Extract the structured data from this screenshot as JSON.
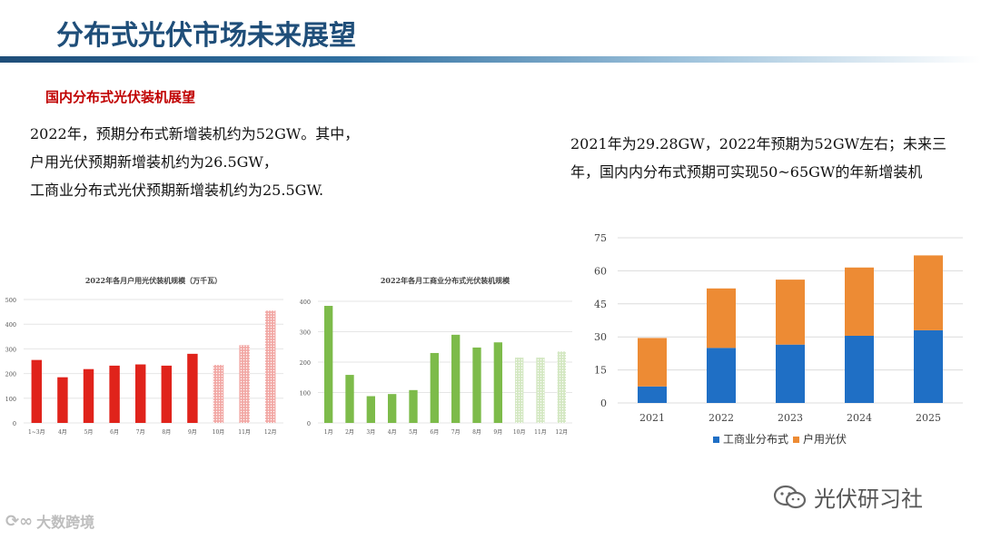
{
  "title": "分布式光伏市场未来展望",
  "subtitle": "国内分布式光伏装机展望",
  "para_left": [
    "2022年，预期分布式新增装机约为52GW。其中，",
    "户用光伏预期新增装机约为26.5GW，",
    "工商业分布式光伏预期新增装机约为25.5GW."
  ],
  "para_right": [
    "2021年为29.28GW，2022年预期为52GW左右；未来三",
    "年，国内内分布式预期可实现50~65GW的年新增装机"
  ],
  "watermark_left": "大数跨境",
  "watermark_right": "光伏研习社",
  "colors": {
    "title": "#1f4e79",
    "subtitle": "#c00000",
    "red": "#e0231b",
    "green": "#7dbb4a",
    "blue": "#1f6fc5",
    "orange": "#ed8b34"
  },
  "chart_data": [
    {
      "type": "bar",
      "title": "2022年各月户用光伏装机规模（万千瓦）",
      "categories": [
        "1~3月",
        "4月",
        "5月",
        "6月",
        "7月",
        "8月",
        "9月",
        "10月",
        "11月",
        "12月"
      ],
      "values": [
        255,
        185,
        218,
        232,
        237,
        232,
        280,
        235,
        315,
        455
      ],
      "forecast_from_index": 7,
      "yticks": [
        0,
        100,
        200,
        300,
        400,
        500
      ],
      "ylim": [
        0,
        500
      ]
    },
    {
      "type": "bar",
      "title": "2022年各月工商业分布式光伏装机规模",
      "categories": [
        "1月",
        "2月",
        "3月",
        "4月",
        "5月",
        "6月",
        "7月",
        "8月",
        "9月",
        "10月",
        "11月",
        "12月"
      ],
      "values": [
        385,
        158,
        88,
        95,
        108,
        230,
        290,
        248,
        265,
        215,
        215,
        235
      ],
      "forecast_from_index": 9,
      "yticks": [
        0,
        100,
        200,
        300,
        400
      ],
      "ylim": [
        0,
        400
      ]
    },
    {
      "type": "bar",
      "stacked": true,
      "title": "",
      "categories": [
        "2021",
        "2022",
        "2023",
        "2024",
        "2025"
      ],
      "series": [
        {
          "name": "工商业分布式",
          "values": [
            7.5,
            25,
            26.5,
            30.5,
            33
          ]
        },
        {
          "name": "户用光伏",
          "values": [
            22,
            27,
            29.5,
            31,
            34
          ]
        }
      ],
      "yticks": [
        0,
        15,
        30,
        45,
        60,
        75
      ],
      "ylim": [
        0,
        75
      ],
      "legend": "bottom"
    }
  ]
}
